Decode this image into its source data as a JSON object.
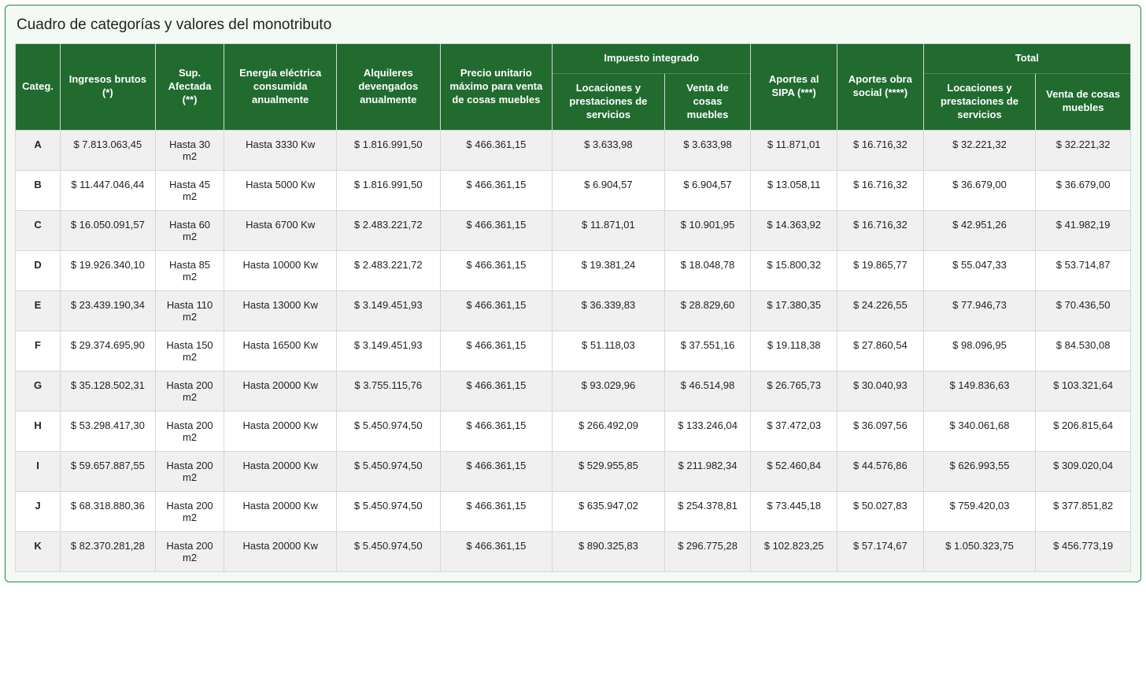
{
  "title": "Cuadro de categorías y valores del monotributo",
  "colors": {
    "panel_border": "#1f8a3b",
    "panel_bg": "#f3faf3",
    "header_bg": "#216b2f",
    "header_fg": "#ffffff",
    "row_stripe": "#f0f0f0",
    "cell_border": "#d6d6d6",
    "text": "#222222"
  },
  "table": {
    "type": "table",
    "header_row1": {
      "categ": "Categ.",
      "ingresos": "Ingresos brutos (*)",
      "sup": "Sup. Afectada (**)",
      "energia": "Energía eléctrica consumida anualmente",
      "alquileres": "Alquileres devengados anualmente",
      "precio": "Precio unitario máximo para venta de cosas muebles",
      "impuesto_group": "Impuesto integrado",
      "sipa": "Aportes al SIPA (***)",
      "obra": "Aportes obra social (****)",
      "total_group": "Total"
    },
    "header_row2": {
      "locaciones": "Locaciones y prestaciones de servicios",
      "venta": "Venta de cosas muebles",
      "locaciones2": "Locaciones y prestaciones de servicios",
      "venta2": "Venta de cosas muebles"
    },
    "rows": [
      {
        "cat": "A",
        "ingresos": "$ 7.813.063,45",
        "sup": "Hasta 30 m2",
        "energia": "Hasta 3330 Kw",
        "alq": "$ 1.816.991,50",
        "precio": "$ 466.361,15",
        "imp_loc": "$ 3.633,98",
        "imp_ven": "$ 3.633,98",
        "sipa": "$ 11.871,01",
        "obra": "$ 16.716,32",
        "tot_loc": "$ 32.221,32",
        "tot_ven": "$ 32.221,32"
      },
      {
        "cat": "B",
        "ingresos": "$ 11.447.046,44",
        "sup": "Hasta 45 m2",
        "energia": "Hasta 5000 Kw",
        "alq": "$ 1.816.991,50",
        "precio": "$ 466.361,15",
        "imp_loc": "$ 6.904,57",
        "imp_ven": "$ 6.904,57",
        "sipa": "$ 13.058,11",
        "obra": "$ 16.716,32",
        "tot_loc": "$ 36.679,00",
        "tot_ven": "$ 36.679,00"
      },
      {
        "cat": "C",
        "ingresos": "$ 16.050.091,57",
        "sup": "Hasta 60 m2",
        "energia": "Hasta 6700 Kw",
        "alq": "$ 2.483.221,72",
        "precio": "$ 466.361,15",
        "imp_loc": "$ 11.871,01",
        "imp_ven": "$ 10.901,95",
        "sipa": "$ 14.363,92",
        "obra": "$ 16.716,32",
        "tot_loc": "$ 42.951,26",
        "tot_ven": "$ 41.982,19"
      },
      {
        "cat": "D",
        "ingresos": "$ 19.926.340,10",
        "sup": "Hasta 85 m2",
        "energia": "Hasta 10000 Kw",
        "alq": "$ 2.483.221,72",
        "precio": "$ 466.361,15",
        "imp_loc": "$ 19.381,24",
        "imp_ven": "$ 18.048,78",
        "sipa": "$ 15.800,32",
        "obra": "$ 19.865,77",
        "tot_loc": "$ 55.047,33",
        "tot_ven": "$ 53.714,87"
      },
      {
        "cat": "E",
        "ingresos": "$ 23.439.190,34",
        "sup": "Hasta 110 m2",
        "energia": "Hasta 13000 Kw",
        "alq": "$ 3.149.451,93",
        "precio": "$ 466.361,15",
        "imp_loc": "$ 36.339,83",
        "imp_ven": "$ 28.829,60",
        "sipa": "$ 17.380,35",
        "obra": "$ 24.226,55",
        "tot_loc": "$ 77.946,73",
        "tot_ven": "$ 70.436,50"
      },
      {
        "cat": "F",
        "ingresos": "$ 29.374.695,90",
        "sup": "Hasta 150 m2",
        "energia": "Hasta 16500 Kw",
        "alq": "$ 3.149.451,93",
        "precio": "$ 466.361,15",
        "imp_loc": "$ 51.118,03",
        "imp_ven": "$ 37.551,16",
        "sipa": "$ 19.118,38",
        "obra": "$ 27.860,54",
        "tot_loc": "$ 98.096,95",
        "tot_ven": "$ 84.530,08"
      },
      {
        "cat": "G",
        "ingresos": "$ 35.128.502,31",
        "sup": "Hasta 200 m2",
        "energia": "Hasta 20000 Kw",
        "alq": "$ 3.755.115,76",
        "precio": "$ 466.361,15",
        "imp_loc": "$ 93.029,96",
        "imp_ven": "$ 46.514,98",
        "sipa": "$ 26.765,73",
        "obra": "$ 30.040,93",
        "tot_loc": "$ 149.836,63",
        "tot_ven": "$ 103.321,64"
      },
      {
        "cat": "H",
        "ingresos": "$ 53.298.417,30",
        "sup": "Hasta 200 m2",
        "energia": "Hasta 20000 Kw",
        "alq": "$ 5.450.974,50",
        "precio": "$ 466.361,15",
        "imp_loc": "$ 266.492,09",
        "imp_ven": "$ 133.246,04",
        "sipa": "$ 37.472,03",
        "obra": "$ 36.097,56",
        "tot_loc": "$ 340.061,68",
        "tot_ven": "$ 206.815,64"
      },
      {
        "cat": "I",
        "ingresos": "$ 59.657.887,55",
        "sup": "Hasta 200 m2",
        "energia": "Hasta 20000 Kw",
        "alq": "$ 5.450.974,50",
        "precio": "$ 466.361,15",
        "imp_loc": "$ 529.955,85",
        "imp_ven": "$ 211.982,34",
        "sipa": "$ 52.460,84",
        "obra": "$ 44.576,86",
        "tot_loc": "$ 626.993,55",
        "tot_ven": "$ 309.020,04"
      },
      {
        "cat": "J",
        "ingresos": "$ 68.318.880,36",
        "sup": "Hasta 200 m2",
        "energia": "Hasta 20000 Kw",
        "alq": "$ 5.450.974,50",
        "precio": "$ 466.361,15",
        "imp_loc": "$ 635.947,02",
        "imp_ven": "$ 254.378,81",
        "sipa": "$ 73.445,18",
        "obra": "$ 50.027,83",
        "tot_loc": "$ 759.420,03",
        "tot_ven": "$ 377.851,82"
      },
      {
        "cat": "K",
        "ingresos": "$ 82.370.281,28",
        "sup": "Hasta 200 m2",
        "energia": "Hasta 20000 Kw",
        "alq": "$ 5.450.974,50",
        "precio": "$ 466.361,15",
        "imp_loc": "$ 890.325,83",
        "imp_ven": "$ 296.775,28",
        "sipa": "$ 102.823,25",
        "obra": "$ 57.174,67",
        "tot_loc": "$ 1.050.323,75",
        "tot_ven": "$ 456.773,19"
      }
    ]
  }
}
